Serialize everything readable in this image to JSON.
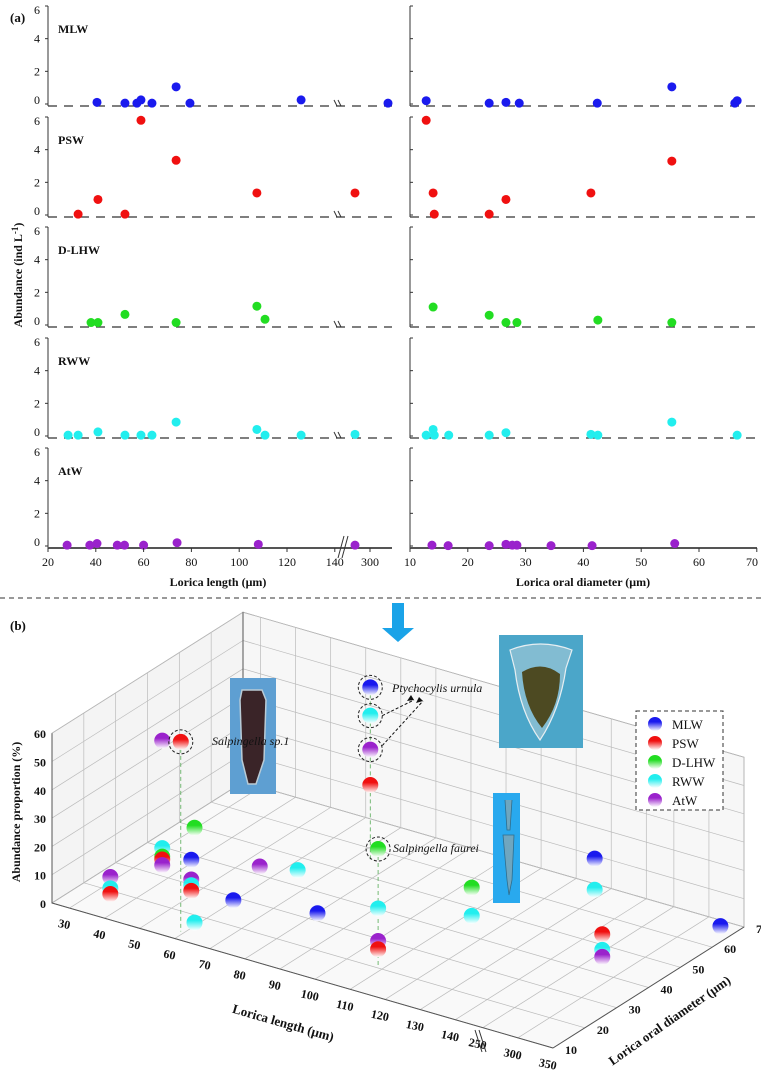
{
  "colors": {
    "MLW": "#1a1aee",
    "PSW": "#f01010",
    "D-LHW": "#22dd22",
    "RWW": "#22eeee",
    "AtW": "#9a22cc",
    "arrow": "#1aa3e8"
  },
  "chart_data": [
    {
      "type": "scatter",
      "panel_label": "(a)",
      "ylabel": "Abundance (ind L-1)",
      "ylabel_main": "Abundance (ind L",
      "ylabel_sup": "-1",
      "ylabel_end": ")",
      "ylim": [
        0,
        6
      ],
      "yticks": [
        "0",
        "2",
        "4",
        "6"
      ],
      "left_xlabel": "Lorica length (μm)",
      "left_xticks": [
        "20",
        "40",
        "60",
        "80",
        "100",
        "120",
        "140",
        "300"
      ],
      "left_axis_break": "140–250",
      "right_xlabel": "Lorica oral diameter (μm)",
      "right_xticks": [
        "10",
        "20",
        "30",
        "40",
        "50",
        "60",
        "70"
      ],
      "right_xlim": [
        10,
        70
      ],
      "panels": [
        {
          "name": "MLW",
          "length": {
            "x": [
              40.5,
              52.2,
              57.2,
              58.9,
              63.5,
              73.6,
              79.4,
              125.9,
              330
            ],
            "y": [
              0.1,
              0.05,
              0.05,
              0.25,
              0.05,
              1.05,
              0.05,
              0.25,
              0.05
            ]
          },
          "diameter": {
            "x": [
              12.8,
              23.7,
              26.6,
              28.9,
              42.4,
              55.3,
              66.2,
              66.6
            ],
            "y": [
              0.2,
              0.05,
              0.1,
              0.05,
              0.05,
              1.05,
              0.05,
              0.2
            ]
          }
        },
        {
          "name": "PSW",
          "length": {
            "x": [
              32.6,
              40.9,
              52.2,
              58.9,
              73.6,
              107.4,
              275
            ],
            "y": [
              0.05,
              0.95,
              0.05,
              5.8,
              3.35,
              1.35,
              1.35
            ]
          },
          "diameter": {
            "x": [
              12.8,
              14.0,
              14.2,
              23.7,
              26.6,
              41.3,
              55.3
            ],
            "y": [
              5.8,
              1.35,
              0.05,
              0.05,
              0.95,
              1.35,
              3.3
            ]
          }
        },
        {
          "name": "D-LHW",
          "length": {
            "x": [
              38.0,
              40.9,
              52.2,
              73.6,
              107.4,
              110.8
            ],
            "y": [
              0.15,
              0.15,
              0.65,
              0.15,
              1.15,
              0.35
            ]
          },
          "diameter": {
            "x": [
              14.0,
              23.7,
              26.6,
              28.5,
              42.5,
              55.3
            ],
            "y": [
              1.1,
              0.6,
              0.15,
              0.15,
              0.3,
              0.15
            ]
          }
        },
        {
          "name": "RWW",
          "length": {
            "x": [
              28.4,
              32.6,
              40.9,
              52.2,
              58.9,
              63.5,
              73.6,
              107.4,
              110.8,
              125.9,
              275
            ],
            "y": [
              0.05,
              0.05,
              0.25,
              0.05,
              0.05,
              0.05,
              0.85,
              0.4,
              0.05,
              0.05,
              0.1
            ]
          },
          "diameter": {
            "x": [
              12.8,
              14.0,
              14.2,
              16.7,
              23.7,
              26.6,
              41.3,
              42.5,
              55.3,
              66.6
            ],
            "y": [
              0.05,
              0.4,
              0.05,
              0.05,
              0.05,
              0.2,
              0.1,
              0.05,
              0.85,
              0.05
            ]
          }
        },
        {
          "name": "AtW",
          "length": {
            "x": [
              28,
              37.5,
              40.5,
              49,
              52,
              60,
              74,
              108,
              275
            ],
            "y": [
              0.05,
              0.05,
              0.15,
              0.05,
              0.05,
              0.05,
              0.2,
              0.1,
              0.05
            ]
          },
          "diameter": {
            "x": [
              13.8,
              16.6,
              23.7,
              26.6,
              27.7,
              28.5,
              34.4,
              41.5,
              55.8
            ],
            "y": [
              0.05,
              0.02,
              0.02,
              0.1,
              0.05,
              0.05,
              0.02,
              0.02,
              0.15
            ]
          }
        }
      ]
    },
    {
      "type": "scatter3d",
      "panel_label": "(b)",
      "zlabel": "Abundance proportion (%)",
      "xlabel": "Lorica length (μm)",
      "ylabel": "Lorica oral diameter (μm)",
      "zticks": [
        "0",
        "10",
        "20",
        "30",
        "40",
        "50",
        "60"
      ],
      "xticks": [
        "30",
        "40",
        "50",
        "60",
        "70",
        "80",
        "90",
        "100",
        "110",
        "120",
        "130",
        "140",
        "250",
        "300",
        "350"
      ],
      "yticks": [
        "10",
        "20",
        "30",
        "40",
        "50",
        "60",
        "70"
      ],
      "zlim": [
        0,
        60
      ],
      "legend": {
        "items": [
          "MLW",
          "PSW",
          "D-LHW",
          "RWW",
          "AtW"
        ],
        "position": "right"
      },
      "annotations": [
        {
          "text": "Ptychocylis urnula",
          "length": 74,
          "diameter": 56
        },
        {
          "text": "Salpingella sp.1",
          "length": 59,
          "diameter": 13
        },
        {
          "text": "Salpingella faurei",
          "length": 108,
          "diameter": 21
        }
      ],
      "points": [
        {
          "wm": "AtW",
          "length": 38,
          "diameter": 14,
          "proportion": 11
        },
        {
          "wm": "RWW",
          "length": 38,
          "diameter": 14,
          "proportion": 7
        },
        {
          "wm": "PSW",
          "length": 38,
          "diameter": 14,
          "proportion": 5
        },
        {
          "wm": "AtW",
          "length": 41,
          "diameter": 27,
          "proportion": 51
        },
        {
          "wm": "RWW",
          "length": 41,
          "diameter": 27,
          "proportion": 13
        },
        {
          "wm": "D-LHW",
          "length": 41,
          "diameter": 27,
          "proportion": 10
        },
        {
          "wm": "PSW",
          "length": 41,
          "diameter": 27,
          "proportion": 9
        },
        {
          "wm": "AtW",
          "length": 41,
          "diameter": 27,
          "proportion": 7
        },
        {
          "wm": "PSW",
          "length": 59,
          "diameter": 13,
          "proportion": 67,
          "note": "Salpingella sp.1"
        },
        {
          "wm": "D-LHW",
          "length": 62,
          "diameter": 14,
          "proportion": 37
        },
        {
          "wm": "RWW",
          "length": 62,
          "diameter": 14,
          "proportion": 3.5
        },
        {
          "wm": "MLW",
          "length": 52,
          "diameter": 24,
          "proportion": 15
        },
        {
          "wm": "AtW",
          "length": 52,
          "diameter": 24,
          "proportion": 8
        },
        {
          "wm": "RWW",
          "length": 52,
          "diameter": 24,
          "proportion": 6
        },
        {
          "wm": "PSW",
          "length": 52,
          "diameter": 24,
          "proportion": 4
        },
        {
          "wm": "MLW",
          "length": 64,
          "diameter": 24,
          "proportion": 5
        },
        {
          "wm": "AtW",
          "length": 57,
          "diameter": 40,
          "proportion": 3
        },
        {
          "wm": "RWW",
          "length": 66,
          "diameter": 42,
          "proportion": 3.5
        },
        {
          "wm": "MLW",
          "length": 88,
          "diameter": 24,
          "proportion": 9
        },
        {
          "wm": "MLW",
          "length": 74,
          "diameter": 56,
          "proportion": 61,
          "note": "Ptychocylis urnula"
        },
        {
          "wm": "RWW",
          "length": 74,
          "diameter": 56,
          "proportion": 51,
          "note": "Ptychocylis urnula"
        },
        {
          "wm": "AtW",
          "length": 74,
          "diameter": 56,
          "proportion": 39,
          "note": "Ptychocylis urnula"
        },
        {
          "wm": "PSW",
          "length": 74,
          "diameter": 56,
          "proportion": 26.5
        },
        {
          "wm": "D-LHW",
          "length": 108,
          "diameter": 21,
          "proportion": 41,
          "note": "Salpingella faurei"
        },
        {
          "wm": "RWW",
          "length": 108,
          "diameter": 21,
          "proportion": 20
        },
        {
          "wm": "AtW",
          "length": 108,
          "diameter": 21,
          "proportion": 8.5
        },
        {
          "wm": "PSW",
          "length": 108,
          "diameter": 21,
          "proportion": 5.6
        },
        {
          "wm": "D-LHW",
          "length": 112,
          "diameter": 46,
          "proportion": 11
        },
        {
          "wm": "RWW",
          "length": 112,
          "diameter": 46,
          "proportion": 1
        },
        {
          "wm": "MLW",
          "length": 128,
          "diameter": 67,
          "proportion": 12
        },
        {
          "wm": "RWW",
          "length": 128,
          "diameter": 67,
          "proportion": 1
        },
        {
          "wm": "PSW",
          "length": 275,
          "diameter": 42,
          "proportion": 12
        },
        {
          "wm": "RWW",
          "length": 275,
          "diameter": 42,
          "proportion": 6.5
        },
        {
          "wm": "AtW",
          "length": 275,
          "diameter": 42,
          "proportion": 4
        },
        {
          "wm": "MLW",
          "length": 330,
          "diameter": 67,
          "proportion": 1
        }
      ]
    }
  ]
}
